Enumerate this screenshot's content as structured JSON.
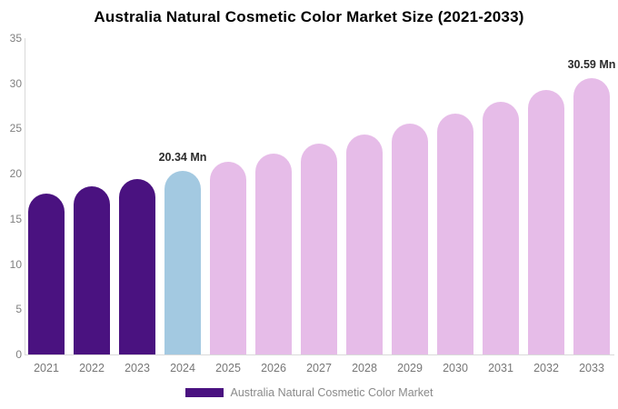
{
  "colors": {
    "historical": "#4a1280",
    "current": "#a3c9e1",
    "forecast": "#e6bce8"
  },
  "chart_data": {
    "type": "bar",
    "title": "Australia Natural Cosmetic Color Market Size (2021-2033)",
    "xlabel": "",
    "ylabel": "",
    "unit": "Mn",
    "categories": [
      "2021",
      "2022",
      "2023",
      "2024",
      "2025",
      "2026",
      "2027",
      "2028",
      "2029",
      "2030",
      "2031",
      "2032",
      "2033"
    ],
    "values": [
      17.76,
      18.58,
      19.44,
      20.34,
      21.28,
      22.27,
      23.3,
      24.38,
      25.51,
      26.7,
      27.94,
      29.23,
      30.59
    ],
    "point_roles": [
      "historical",
      "historical",
      "historical",
      "current",
      "forecast",
      "forecast",
      "forecast",
      "forecast",
      "forecast",
      "forecast",
      "forecast",
      "forecast",
      "forecast"
    ],
    "data_labels": [
      "",
      "",
      "",
      "20.34 Mn",
      "",
      "",
      "",
      "",
      "",
      "",
      "",
      "",
      "30.59 Mn"
    ],
    "ylim": [
      0,
      35
    ],
    "yticks": [
      0,
      5,
      10,
      15,
      20,
      25,
      30,
      35
    ],
    "grid": false,
    "legend_position": "bottom",
    "legend": [
      {
        "label": "Australia Natural Cosmetic Color Market",
        "color": "#4a1280"
      }
    ]
  }
}
